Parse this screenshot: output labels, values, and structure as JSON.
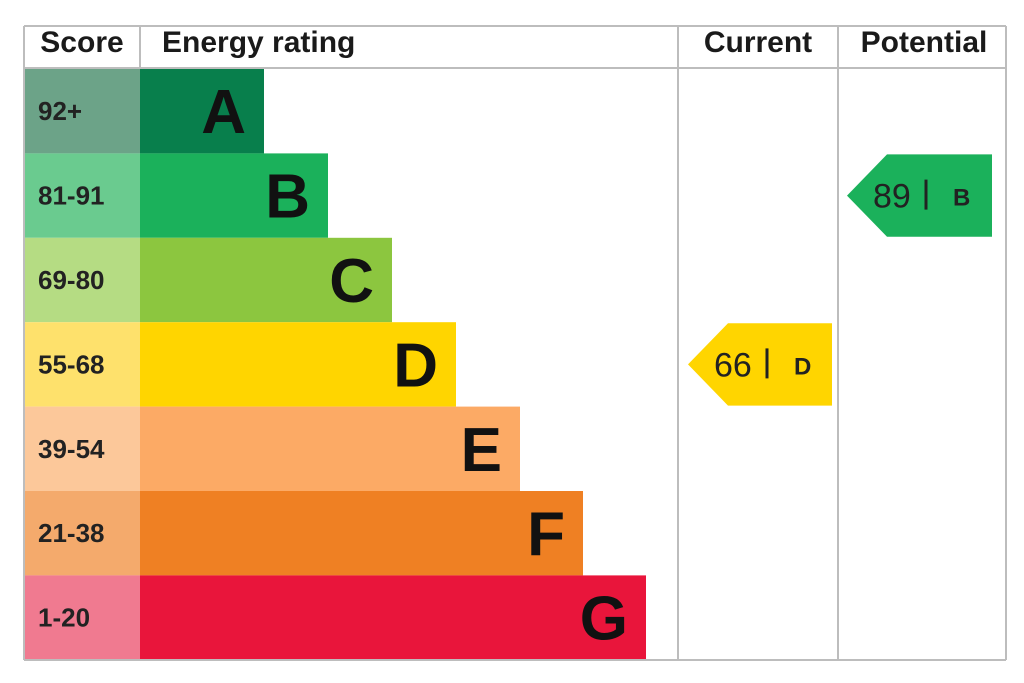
{
  "header": {
    "score": "Score",
    "energy_rating": "Energy rating",
    "current": "Current",
    "potential": "Potential"
  },
  "chart_data": {
    "type": "bar",
    "bands": [
      {
        "letter": "A",
        "range": "92+",
        "color": "#087f4c",
        "score_color": "#6ca388"
      },
      {
        "letter": "B",
        "range": "81-91",
        "color": "#1bb15b",
        "score_color": "#6acb8f"
      },
      {
        "letter": "C",
        "range": "69-80",
        "color": "#8cc63f",
        "score_color": "#b5dc83"
      },
      {
        "letter": "D",
        "range": "55-68",
        "color": "#ffd500",
        "score_color": "#fee16c"
      },
      {
        "letter": "E",
        "range": "39-54",
        "color": "#fcaa65",
        "score_color": "#fcc89a"
      },
      {
        "letter": "F",
        "range": "21-38",
        "color": "#ef8023",
        "score_color": "#f4aa6c"
      },
      {
        "letter": "G",
        "range": "1-20",
        "color": "#e9153b",
        "score_color": "#f07a90"
      }
    ],
    "current": {
      "value": "66",
      "letter": "D",
      "band_index": 3,
      "color": "#ffd500"
    },
    "potential": {
      "value": "89",
      "letter": "B",
      "band_index": 1,
      "color": "#1bb15b"
    }
  }
}
